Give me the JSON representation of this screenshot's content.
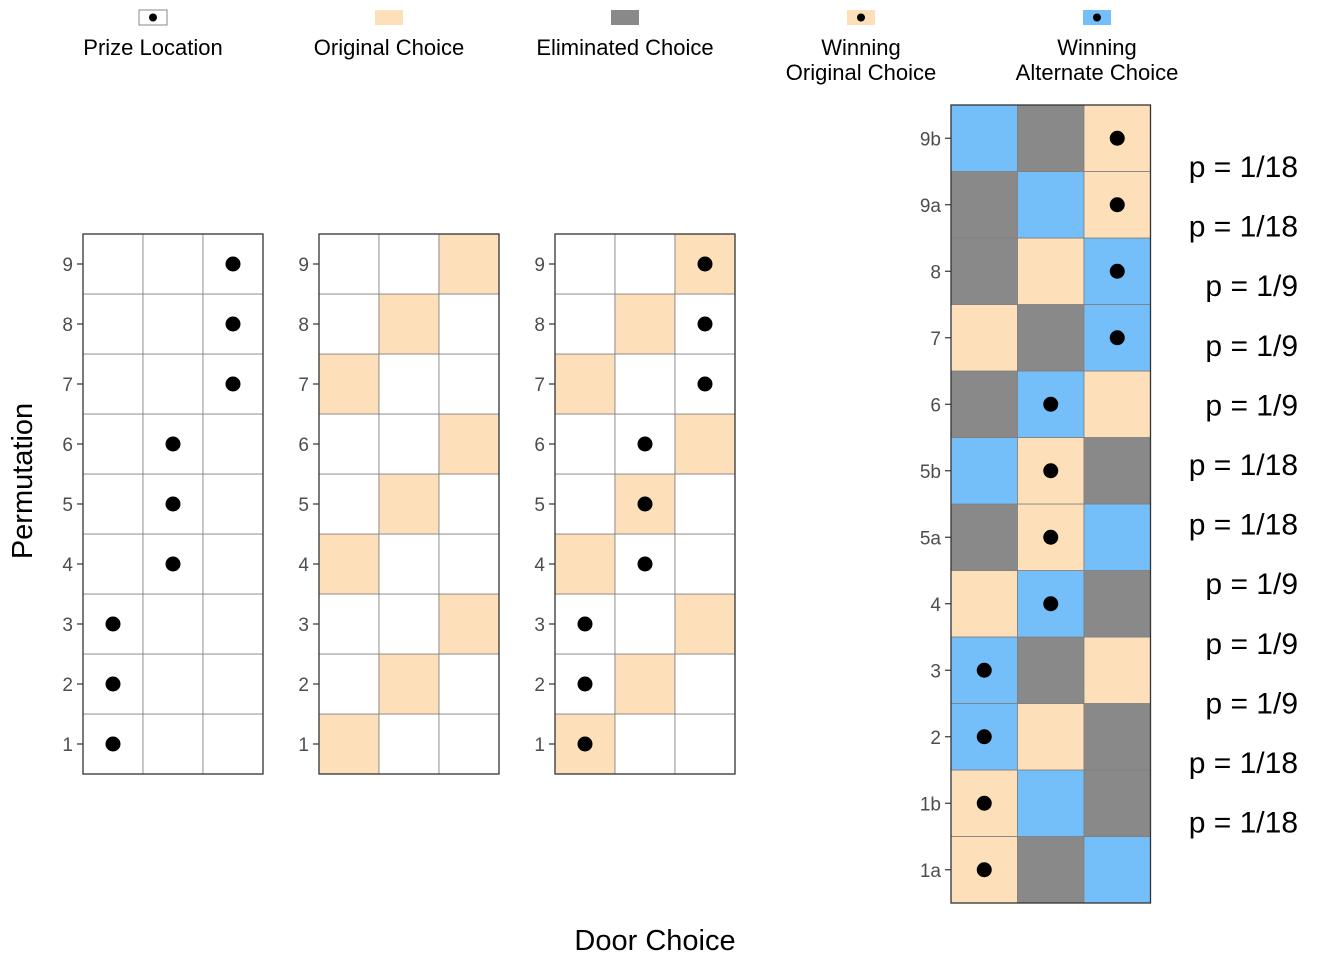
{
  "colors": {
    "empty": "#FFFFFF",
    "original": "#FDDFB9",
    "eliminated": "#898989",
    "alternate": "#74BFF9",
    "prize": "#000000",
    "grid": "#7F7F7F",
    "border": "#333333"
  },
  "legend": [
    {
      "key": "prize",
      "label_lines": [
        "Prize Location"
      ],
      "fill": "empty",
      "dot": true
    },
    {
      "key": "original",
      "label_lines": [
        "Original Choice"
      ],
      "fill": "original",
      "dot": false
    },
    {
      "key": "eliminated",
      "label_lines": [
        "Eliminated Choice"
      ],
      "fill": "eliminated",
      "dot": false
    },
    {
      "key": "winning-original",
      "label_lines": [
        "Winning",
        "Original Choice"
      ],
      "fill": "original",
      "dot": true
    },
    {
      "key": "winning-alternate",
      "label_lines": [
        "Winning",
        "Alternate Choice"
      ],
      "fill": "alternate",
      "dot": true
    }
  ],
  "axes": {
    "ylabel": "Permutation",
    "xlabel": "Door Choice"
  },
  "chart_data": [
    {
      "type": "heatmap",
      "name": "prize-location",
      "rows": [
        "1",
        "2",
        "3",
        "4",
        "5",
        "6",
        "7",
        "8",
        "9"
      ],
      "doors": 3,
      "cells": [
        [
          "empty",
          "empty",
          "empty"
        ],
        [
          "empty",
          "empty",
          "empty"
        ],
        [
          "empty",
          "empty",
          "empty"
        ],
        [
          "empty",
          "empty",
          "empty"
        ],
        [
          "empty",
          "empty",
          "empty"
        ],
        [
          "empty",
          "empty",
          "empty"
        ],
        [
          "empty",
          "empty",
          "empty"
        ],
        [
          "empty",
          "empty",
          "empty"
        ],
        [
          "empty",
          "empty",
          "empty"
        ]
      ],
      "prize": [
        1,
        1,
        1,
        2,
        2,
        2,
        3,
        3,
        3
      ]
    },
    {
      "type": "heatmap",
      "name": "original-choice",
      "rows": [
        "1",
        "2",
        "3",
        "4",
        "5",
        "6",
        "7",
        "8",
        "9"
      ],
      "doors": 3,
      "cells": [
        [
          "original",
          "empty",
          "empty"
        ],
        [
          "empty",
          "original",
          "empty"
        ],
        [
          "empty",
          "empty",
          "original"
        ],
        [
          "original",
          "empty",
          "empty"
        ],
        [
          "empty",
          "original",
          "empty"
        ],
        [
          "empty",
          "empty",
          "original"
        ],
        [
          "original",
          "empty",
          "empty"
        ],
        [
          "empty",
          "original",
          "empty"
        ],
        [
          "empty",
          "empty",
          "original"
        ]
      ],
      "prize": []
    },
    {
      "type": "heatmap",
      "name": "combined",
      "rows": [
        "1",
        "2",
        "3",
        "4",
        "5",
        "6",
        "7",
        "8",
        "9"
      ],
      "doors": 3,
      "cells": [
        [
          "original",
          "empty",
          "empty"
        ],
        [
          "empty",
          "original",
          "empty"
        ],
        [
          "empty",
          "empty",
          "original"
        ],
        [
          "original",
          "empty",
          "empty"
        ],
        [
          "empty",
          "original",
          "empty"
        ],
        [
          "empty",
          "empty",
          "original"
        ],
        [
          "original",
          "empty",
          "empty"
        ],
        [
          "empty",
          "original",
          "empty"
        ],
        [
          "empty",
          "empty",
          "original"
        ]
      ],
      "prize": [
        1,
        1,
        1,
        2,
        2,
        2,
        3,
        3,
        3
      ]
    },
    {
      "type": "heatmap",
      "name": "outcomes",
      "rows": [
        "1a",
        "1b",
        "2",
        "3",
        "4",
        "5a",
        "5b",
        "6",
        "7",
        "8",
        "9a",
        "9b"
      ],
      "doors": 3,
      "cells": [
        [
          "original",
          "eliminated",
          "alternate"
        ],
        [
          "original",
          "alternate",
          "eliminated"
        ],
        [
          "alternate",
          "original",
          "eliminated"
        ],
        [
          "alternate",
          "eliminated",
          "original"
        ],
        [
          "original",
          "alternate",
          "eliminated"
        ],
        [
          "eliminated",
          "original",
          "alternate"
        ],
        [
          "alternate",
          "original",
          "eliminated"
        ],
        [
          "eliminated",
          "alternate",
          "original"
        ],
        [
          "original",
          "eliminated",
          "alternate"
        ],
        [
          "eliminated",
          "original",
          "alternate"
        ],
        [
          "eliminated",
          "alternate",
          "original"
        ],
        [
          "alternate",
          "eliminated",
          "original"
        ]
      ],
      "prize": [
        1,
        1,
        1,
        1,
        2,
        2,
        2,
        2,
        3,
        3,
        3,
        3
      ],
      "probabilities": [
        "p = 1/18",
        "p = 1/18",
        "p = 1/9",
        "p = 1/9",
        "p = 1/9",
        "p = 1/18",
        "p = 1/18",
        "p = 1/9",
        "p = 1/9",
        "p = 1/9",
        "p = 1/18",
        "p = 1/18"
      ]
    }
  ]
}
